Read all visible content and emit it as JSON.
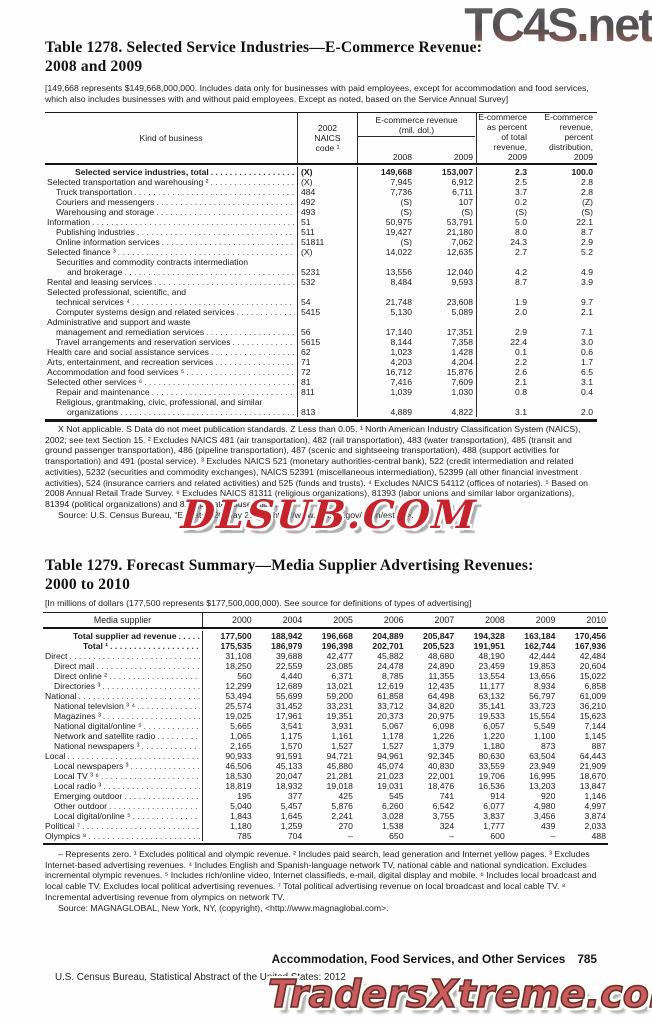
{
  "watermarks": {
    "top": "TC4S.net",
    "middle": "DLSUB.COM",
    "bottom": "TradersXtreme.com"
  },
  "table1278": {
    "title1": "Table 1278. Selected Service Industries—E-Commerce Revenue:",
    "title2": "2008 and 2009",
    "note": "[149,668 represents $149,668,000,000. Includes data only for businesses with paid employees, except for accommodation and food services, which also includes businesses with and without paid employees. Except as noted, based on the Service Annual Survey]",
    "columns": {
      "kind": "Kind of business",
      "naics": "2002\nNAICS\ncode ¹",
      "rev_group": "E-commerce revenue\n(mil. dol.)",
      "years": [
        "2008",
        "2009"
      ],
      "pct": "E-commerce\nas percent\nof total\nrevenue,\n2009",
      "dist": "E-commerce\nrevenue,\npercent\ndistribution,\n2009"
    },
    "rows": [
      {
        "label": "Selected service industries, total",
        "indent": "t",
        "dots": true,
        "bold": true,
        "naics": "(X)",
        "c1": "149,668",
        "c2": "153,007",
        "c3": "2.3",
        "c4": "100.0"
      },
      {
        "label": "Selected transportation and warehousing ²",
        "indent": 0,
        "dots": true,
        "naics": "(X)",
        "c1": "7,945",
        "c2": "6,912",
        "c3": "2.5",
        "c4": "2.8"
      },
      {
        "label": "Truck transportation",
        "indent": 1,
        "dots": true,
        "naics": "484",
        "c1": "7,736",
        "c2": "6,711",
        "c3": "3.7",
        "c4": "2.8"
      },
      {
        "label": "Couriers and messengers",
        "indent": 1,
        "dots": true,
        "naics": "492",
        "c1": "(S)",
        "c2": "107",
        "c3": "0.2",
        "c4": "(Z)"
      },
      {
        "label": "Warehousing and storage",
        "indent": 1,
        "dots": true,
        "naics": "493",
        "c1": "(S)",
        "c2": "(S)",
        "c3": "(S)",
        "c4": "(S)"
      },
      {
        "label": "Information",
        "indent": 0,
        "dots": true,
        "naics": "51",
        "c1": "50,975",
        "c2": "53,791",
        "c3": "5.0",
        "c4": "22.1"
      },
      {
        "label": "Publishing industries",
        "indent": 1,
        "dots": true,
        "naics": "511",
        "c1": "19,427",
        "c2": "21,180",
        "c3": "8.0",
        "c4": "8.7"
      },
      {
        "label": "Online information services",
        "indent": 1,
        "dots": true,
        "naics": "51811",
        "c1": "(S)",
        "c2": "7,062",
        "c3": "24.3",
        "c4": "2.9"
      },
      {
        "label": "Selected finance ³",
        "indent": 0,
        "dots": true,
        "naics": "(X)",
        "c1": "14,022",
        "c2": "12,635",
        "c3": "2.7",
        "c4": "5.2"
      },
      {
        "label": "Securities and commodity contracts intermediation",
        "indent": 1,
        "dots": false
      },
      {
        "label": "and brokerage",
        "indent": 2,
        "dots": true,
        "naics": "5231",
        "c1": "13,556",
        "c2": "12,040",
        "c3": "4.2",
        "c4": "4.9"
      },
      {
        "label": "Rental and leasing services",
        "indent": 0,
        "dots": true,
        "naics": "532",
        "c1": "8,484",
        "c2": "9,593",
        "c3": "8.7",
        "c4": "3.9"
      },
      {
        "label": "Selected professional, scientific, and",
        "indent": 0,
        "dots": false
      },
      {
        "label": "technical services ⁴",
        "indent": 1,
        "dots": true,
        "naics": "54",
        "c1": "21,748",
        "c2": "23,608",
        "c3": "1.9",
        "c4": "9.7"
      },
      {
        "label": "Computer systems design and related services",
        "indent": 1,
        "dots": true,
        "naics": "5415",
        "c1": "5,130",
        "c2": "5,089",
        "c3": "2.0",
        "c4": "2.1"
      },
      {
        "label": "Administrative and support and waste",
        "indent": 0,
        "dots": false
      },
      {
        "label": "management and remediation services",
        "indent": 1,
        "dots": true,
        "naics": "56",
        "c1": "17,140",
        "c2": "17,351",
        "c3": "2.9",
        "c4": "7.1"
      },
      {
        "label": "Travel arrangements and reservation services",
        "indent": 1,
        "dots": true,
        "naics": "5615",
        "c1": "8,144",
        "c2": "7,358",
        "c3": "22.4",
        "c4": "3.0"
      },
      {
        "label": "Health care and social assistance services",
        "indent": 0,
        "dots": true,
        "naics": "62",
        "c1": "1,023",
        "c2": "1,428",
        "c3": "0.1",
        "c4": "0.6"
      },
      {
        "label": "Arts, entertainment, and recreation services",
        "indent": 0,
        "dots": true,
        "naics": "71",
        "c1": "4,203",
        "c2": "4,204",
        "c3": "2.2",
        "c4": "1.7"
      },
      {
        "label": "Accommodation and food services ⁵",
        "indent": 0,
        "dots": true,
        "naics": "72",
        "c1": "16,712",
        "c2": "15,876",
        "c3": "2.6",
        "c4": "6.5"
      },
      {
        "label": "Selected other services ⁶",
        "indent": 0,
        "dots": true,
        "naics": "81",
        "c1": "7,416",
        "c2": "7,609",
        "c3": "2.1",
        "c4": "3.1"
      },
      {
        "label": "Repair and maintenance",
        "indent": 1,
        "dots": true,
        "naics": "811",
        "c1": "1,039",
        "c2": "1,030",
        "c3": "0.8",
        "c4": "0.4"
      },
      {
        "label": "Religious, grantmaking, civic, professional, and similar",
        "indent": 1,
        "dots": false
      },
      {
        "label": "organizations",
        "indent": 2,
        "dots": true,
        "naics": "813",
        "c1": "4,889",
        "c2": "4,822",
        "c3": "3.1",
        "c4": "2.0"
      }
    ],
    "footnotes": "X Not applicable. S Data do not meet publication standards. Z Less than 0.05. ¹ North American Industry Classification System (NAICS), 2002; see text Section 15. ² Excludes NAICS 481 (air transportation), 482 (rail transportation), 483 (water transportation), 485 (transit and ground passenger transportation), 486 (pipeline transportation), 487 (scenic and sightseeing transportation), 488 (support activities for transportation) and 491 (postal service). ³ Excludes NAICS 521 (monetary authorities-central bank), 522 (credit intermediation and related activities), 5232 (securities and commodity exchanges), NAICS 52391 (miscellaneous intermediation), 52399 (all other financial investment activities), 524 (insurance carriers and related activities) and 525 (funds and trusts). ⁴ Excludes NAICS 54112 (offices of notaries). ⁵ Based on 2008 Annual Retail Trade Survey. ⁶ Excludes NAICS 81311 (religious organizations), 81393 (labor unions and similar labor organizations), 81394 (political organizations) and 814 (private households).",
    "source": "Source: U.S. Census Bureau, “E-Stats,” 26 May 2011, <http://www.census.gov/econ/estats>."
  },
  "table1279": {
    "title1": "Table 1279. Forecast Summary—Media Supplier Advertising Revenues:",
    "title2": "2000 to 2010",
    "note": "[In millions of dollars (177,500 represents $177,500,000,000). See source for definitions of types of advertising]",
    "columns": {
      "label": "Media supplier",
      "years": [
        "2000",
        "2004",
        "2005",
        "2006",
        "2007",
        "2008",
        "2009",
        "2010"
      ]
    },
    "rows": [
      {
        "label": "Total supplier ad revenue",
        "indent": "t",
        "dots": true,
        "bold": true,
        "v": [
          "177,500",
          "188,942",
          "196,668",
          "204,889",
          "205,847",
          "194,328",
          "163,184",
          "170,456"
        ]
      },
      {
        "label": "Total ¹",
        "indent": "tt",
        "dots": true,
        "bold": true,
        "v": [
          "175,535",
          "186,979",
          "196,398",
          "202,701",
          "205,523",
          "191,951",
          "162,744",
          "167,936"
        ]
      },
      {
        "label": "Direct",
        "indent": 0,
        "dots": true,
        "v": [
          "31,108",
          "39,688",
          "42,477",
          "45,882",
          "48,680",
          "48,190",
          "42,444",
          "42,484"
        ]
      },
      {
        "label": "Direct mail",
        "indent": 1,
        "dots": true,
        "v": [
          "18,250",
          "22,559",
          "23,085",
          "24,478",
          "24,890",
          "23,459",
          "19,853",
          "20,604"
        ]
      },
      {
        "label": "Direct online ²",
        "indent": 1,
        "dots": true,
        "v": [
          "560",
          "4,440",
          "6,371",
          "8,785",
          "11,355",
          "13,554",
          "13,656",
          "15,022"
        ]
      },
      {
        "label": "Directories ³",
        "indent": 1,
        "dots": true,
        "v": [
          "12,299",
          "12,689",
          "13,021",
          "12,619",
          "12,435",
          "11,177",
          "8,934",
          "6,858"
        ]
      },
      {
        "label": "National",
        "indent": 0,
        "dots": true,
        "v": [
          "53,494",
          "55,699",
          "59,200",
          "61,858",
          "64,498",
          "63,132",
          "56,797",
          "61,009"
        ]
      },
      {
        "label": "National television ³ ⁴",
        "indent": 1,
        "dots": true,
        "v": [
          "25,574",
          "31,452",
          "33,231",
          "33,712",
          "34,820",
          "35,141",
          "33,723",
          "36,210"
        ]
      },
      {
        "label": "Magazines ³",
        "indent": 1,
        "dots": true,
        "v": [
          "19,025",
          "17,961",
          "19,351",
          "20,373",
          "20,975",
          "19,533",
          "15,554",
          "15,623"
        ]
      },
      {
        "label": "National digital/online ⁵",
        "indent": 1,
        "dots": true,
        "v": [
          "5,665",
          "3,541",
          "3,931",
          "5,067",
          "6,098",
          "6,057",
          "5,549",
          "7,144"
        ]
      },
      {
        "label": "Network and satellite radio",
        "indent": 1,
        "dots": true,
        "v": [
          "1,065",
          "1,175",
          "1,161",
          "1,178",
          "1,226",
          "1,220",
          "1,100",
          "1,145"
        ]
      },
      {
        "label": "National newspapers ³",
        "indent": 1,
        "dots": true,
        "v": [
          "2,165",
          "1,570",
          "1,527",
          "1,527",
          "1,379",
          "1,180",
          "873",
          "887"
        ]
      },
      {
        "label": "Local",
        "indent": 0,
        "dots": true,
        "v": [
          "90,933",
          "91,591",
          "94,721",
          "94,961",
          "92,345",
          "80,630",
          "63,504",
          "64,443"
        ]
      },
      {
        "label": "Local newspapers ³",
        "indent": 1,
        "dots": true,
        "v": [
          "46,506",
          "45,133",
          "45,880",
          "45,074",
          "40,830",
          "33,559",
          "23,949",
          "21,909"
        ]
      },
      {
        "label": "Local TV ³ ⁶",
        "indent": 1,
        "dots": true,
        "v": [
          "18,530",
          "20,047",
          "21,281",
          "21,023",
          "22,001",
          "19,706",
          "16,995",
          "18,670"
        ]
      },
      {
        "label": "Local radio ³",
        "indent": 1,
        "dots": true,
        "v": [
          "18,819",
          "18,932",
          "19,018",
          "19,031",
          "18,476",
          "16,536",
          "13,203",
          "13,847"
        ]
      },
      {
        "label": "Emerging outdoor",
        "indent": 1,
        "dots": true,
        "v": [
          "195",
          "377",
          "425",
          "545",
          "741",
          "914",
          "920",
          "1,146"
        ]
      },
      {
        "label": "Other outdoor",
        "indent": 1,
        "dots": true,
        "v": [
          "5,040",
          "5,457",
          "5,876",
          "6,260",
          "6,542",
          "6,077",
          "4,980",
          "4,997"
        ]
      },
      {
        "label": "Local digital/online ⁵",
        "indent": 1,
        "dots": true,
        "v": [
          "1,843",
          "1,645",
          "2,241",
          "3,028",
          "3,755",
          "3,837",
          "3,456",
          "3,874"
        ]
      },
      {
        "label": "Political ⁷",
        "indent": 0,
        "dots": true,
        "v": [
          "1,180",
          "1,259",
          "270",
          "1,538",
          "324",
          "1,777",
          "439",
          "2,033"
        ]
      },
      {
        "label": "Olympics ⁸",
        "indent": 0,
        "dots": true,
        "v": [
          "785",
          "704",
          "–",
          "650",
          "–",
          "600",
          "–",
          "488"
        ]
      }
    ],
    "footnotes": "– Represents zero. ¹ Excludes political and olympic revenue. ² Includes paid search, lead generation and Internet yellow pages. ³ Excludes Internet-based advertising revenues. ⁴ Includes English and Spanish-language network TV, national cable and national syndication. Excludes incremental olympic revenues. ⁵ Includes rich/online video, Internet classifieds, e-mail, digital display and mobile. ⁶ Includes local broadcast and local cable TV. Excludes local political advertising revenues. ⁷ Total political advertising revenue on local broadcast and local cable TV. ⁸ Incremental advertising revenue from olympics on network TV.",
    "source": "Source: MAGNAGLOBAL, New York, NY, (copyright), <http://www.magnaglobal.com>."
  },
  "footer": {
    "section_title": "Accommodation, Food Services, and Other Services",
    "page_number": "785",
    "census_line": "U.S. Census Bureau, Statistical Abstract of the United States: 2012"
  }
}
